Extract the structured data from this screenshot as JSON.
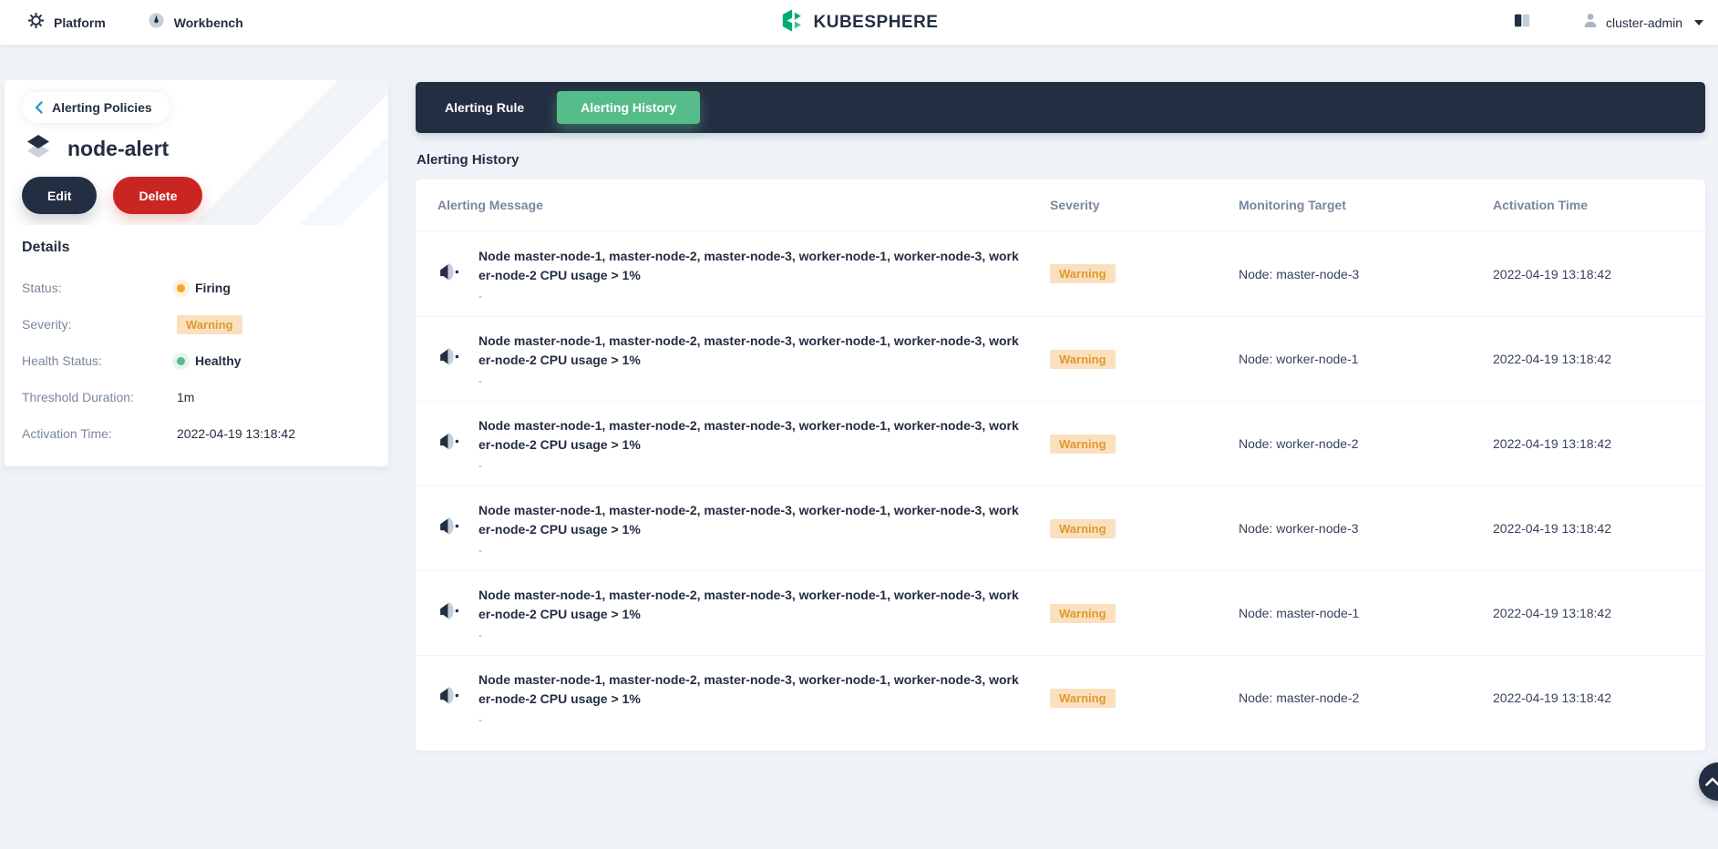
{
  "topbar": {
    "platform_label": "Platform",
    "workbench_label": "Workbench",
    "logo_text": "KUBESPHERE",
    "username": "cluster-admin"
  },
  "sidebar": {
    "back_label": "Alerting Policies",
    "title": "node-alert",
    "edit_label": "Edit",
    "delete_label": "Delete",
    "details_title": "Details",
    "details": [
      {
        "label": "Status:",
        "value": "Firing",
        "type": "dot",
        "color": "#f5a623"
      },
      {
        "label": "Severity:",
        "value": "Warning",
        "type": "badge"
      },
      {
        "label": "Health Status:",
        "value": "Healthy",
        "type": "dot",
        "color": "#55bc8a"
      },
      {
        "label": "Threshold Duration:",
        "value": "1m",
        "type": "text"
      },
      {
        "label": "Activation Time:",
        "value": "2022-04-19 13:18:42",
        "type": "text"
      }
    ]
  },
  "tabs": [
    {
      "label": "Alerting Rule",
      "active": false
    },
    {
      "label": "Alerting History",
      "active": true
    }
  ],
  "main": {
    "section_title": "Alerting History",
    "table": {
      "columns": [
        "Alerting Message",
        "Severity",
        "Monitoring Target",
        "Activation Time"
      ],
      "rows": [
        {
          "message": "Node master-node-1, master-node-2, master-node-3, worker-node-1, worker-node-3, worker-node-2 CPU usage > 1%",
          "sub": "-",
          "severity": "Warning",
          "target": "Node: master-node-3",
          "time": "2022-04-19 13:18:42"
        },
        {
          "message": "Node master-node-1, master-node-2, master-node-3, worker-node-1, worker-node-3, worker-node-2 CPU usage > 1%",
          "sub": "-",
          "severity": "Warning",
          "target": "Node: worker-node-1",
          "time": "2022-04-19 13:18:42"
        },
        {
          "message": "Node master-node-1, master-node-2, master-node-3, worker-node-1, worker-node-3, worker-node-2 CPU usage > 1%",
          "sub": "-",
          "severity": "Warning",
          "target": "Node: worker-node-2",
          "time": "2022-04-19 13:18:42"
        },
        {
          "message": "Node master-node-1, master-node-2, master-node-3, worker-node-1, worker-node-3, worker-node-2 CPU usage > 1%",
          "sub": "-",
          "severity": "Warning",
          "target": "Node: worker-node-3",
          "time": "2022-04-19 13:18:42"
        },
        {
          "message": "Node master-node-1, master-node-2, master-node-3, worker-node-1, worker-node-3, worker-node-2 CPU usage > 1%",
          "sub": "-",
          "severity": "Warning",
          "target": "Node: master-node-1",
          "time": "2022-04-19 13:18:42"
        },
        {
          "message": "Node master-node-1, master-node-2, master-node-3, worker-node-1, worker-node-3, worker-node-2 CPU usage > 1%",
          "sub": "-",
          "severity": "Warning",
          "target": "Node: master-node-2",
          "time": "2022-04-19 13:18:42"
        }
      ]
    }
  },
  "colors": {
    "dark": "#242e42",
    "green": "#55bc8a",
    "logo_green": "#00ab72",
    "logo_green_light": "#39c690",
    "red": "#ca2621",
    "warning_text": "#e0992c",
    "warning_bg": "#fae0bf",
    "label_gray": "#79879c",
    "page_bg": "#eff3f8",
    "link_blue": "#329dce"
  }
}
